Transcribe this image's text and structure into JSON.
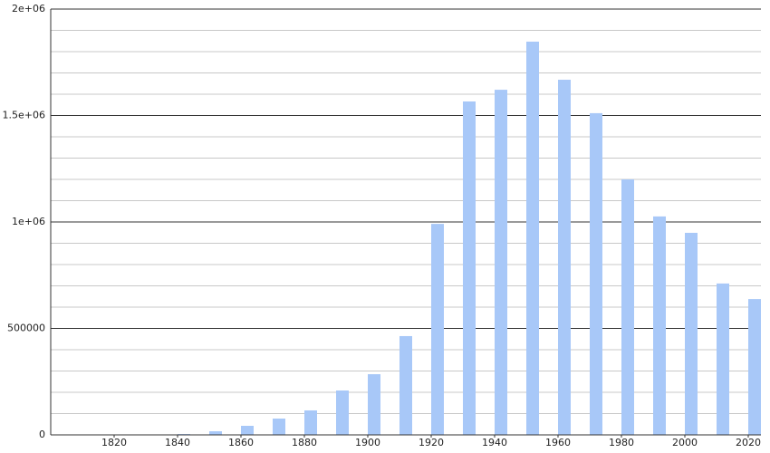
{
  "chart_data": {
    "type": "bar",
    "x": [
      1840,
      1850,
      1860,
      1870,
      1880,
      1890,
      1900,
      1910,
      1920,
      1930,
      1940,
      1950,
      1960,
      1970,
      1980,
      1990,
      2000,
      2010,
      2020
    ],
    "values": [
      4000,
      17000,
      42500,
      76600,
      115000,
      208500,
      285000,
      464000,
      991000,
      1566000,
      1621000,
      1847000,
      1668000,
      1511000,
      1200000,
      1026000,
      949000,
      711000,
      638000
    ],
    "color": "#a8c8f8",
    "xlim": [
      1800,
      2024
    ],
    "xticks": [
      1820,
      1840,
      1860,
      1880,
      1900,
      1920,
      1940,
      1960,
      1980,
      2000,
      2020
    ],
    "ylim": [
      0,
      2000000
    ],
    "yticks": [
      0,
      500000,
      {
        "value": 1000000,
        "label": "1e+06"
      },
      {
        "value": 1500000,
        "label": "1.5e+06"
      },
      {
        "value": 2000000,
        "label": "2e+06"
      }
    ],
    "yminor": [
      100000,
      200000,
      300000,
      400000,
      600000,
      700000,
      800000,
      900000,
      1100000,
      1200000,
      1300000,
      1400000,
      1600000,
      1700000,
      1800000,
      1900000
    ],
    "grid": true
  }
}
